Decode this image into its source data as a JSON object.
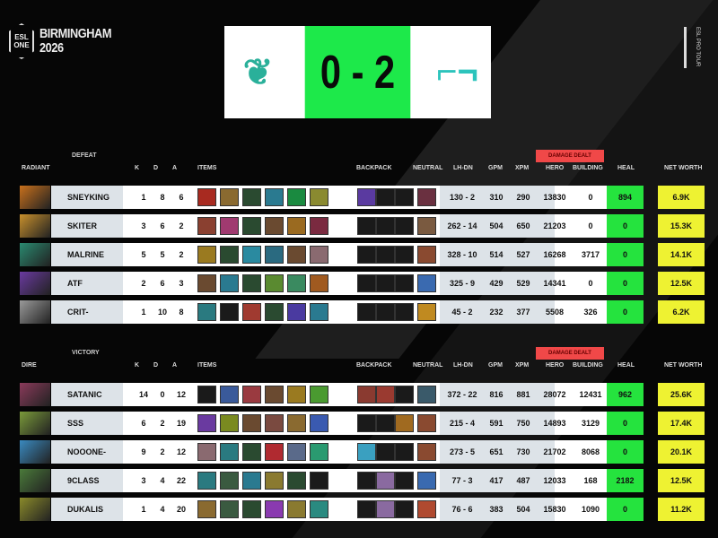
{
  "event": {
    "name": "BIRMINGHAM",
    "year": "2026",
    "brand": "ESL ONE",
    "tour": "ESL PRO TOUR"
  },
  "score": {
    "value": "0 - 2",
    "accent": "#1de94a",
    "team_left_color": "#2ab09a",
    "team_right_color": "#2cc4bc"
  },
  "columns": {
    "k": "K",
    "d": "D",
    "a": "A",
    "items": "ITEMS",
    "backpack": "BACKPACK",
    "neutral": "NEUTRAL",
    "lhdn": "LH-DN",
    "gpm": "GPM",
    "xpm": "XPM",
    "hero": "HERO",
    "building": "BUILDING",
    "heal": "HEAL",
    "networth": "NET WORTH",
    "damage": "DAMAGE DEALT"
  },
  "radiant": {
    "label": "RADIANT",
    "result": "DEFEAT",
    "players": [
      {
        "name": "SNEYKING",
        "k": "1",
        "d": "8",
        "a": "6",
        "lhdn": "130 - 2",
        "gpm": "310",
        "xpm": "290",
        "hero": "13830",
        "building": "0",
        "heal": "894",
        "nw": "6.9K",
        "hero_color": "#c8701c",
        "items": [
          "#a82a20",
          "#8a6a30",
          "#2a4a30",
          "#2a7a90",
          "#1a8a40",
          "#8a8a30"
        ],
        "backpack": [
          "#5a3aa0",
          "#1a1a1a",
          "#1a1a1a"
        ],
        "neutral": "#6a3040"
      },
      {
        "name": "SKITER",
        "k": "3",
        "d": "6",
        "a": "2",
        "lhdn": "262 - 14",
        "gpm": "504",
        "xpm": "650",
        "hero": "21203",
        "building": "0",
        "heal": "0",
        "nw": "15.3K",
        "hero_color": "#c8902c",
        "items": [
          "#8a4030",
          "#a03a70",
          "#2a4a30",
          "#6a4a30",
          "#9a6a20",
          "#7a2a40"
        ],
        "backpack": [
          "#1a1a1a",
          "#1a1a1a",
          "#1a1a1a"
        ],
        "neutral": "#7a5a40"
      },
      {
        "name": "MALRINE",
        "k": "5",
        "d": "5",
        "a": "2",
        "lhdn": "328 - 10",
        "gpm": "514",
        "xpm": "527",
        "hero": "16268",
        "building": "3717",
        "heal": "0",
        "nw": "14.1K",
        "hero_color": "#2a8a70",
        "items": [
          "#9a7a20",
          "#2a4a30",
          "#2a8aa0",
          "#2a6a80",
          "#6a4a30",
          "#8a6a70"
        ],
        "backpack": [
          "#1a1a1a",
          "#1a1a1a",
          "#1a1a1a"
        ],
        "neutral": "#8a4a30"
      },
      {
        "name": "ATF",
        "k": "2",
        "d": "6",
        "a": "3",
        "lhdn": "325 - 9",
        "gpm": "429",
        "xpm": "529",
        "hero": "14341",
        "building": "0",
        "heal": "0",
        "nw": "12.5K",
        "hero_color": "#6a3aa0",
        "items": [
          "#6a4a30",
          "#2a7a90",
          "#2a4a30",
          "#5a8a30",
          "#3a8a60",
          "#a05a20"
        ],
        "backpack": [
          "#1a1a1a",
          "#1a1a1a",
          "#1a1a1a"
        ],
        "neutral": "#3a6ab0"
      },
      {
        "name": "CRIT-",
        "k": "1",
        "d": "10",
        "a": "8",
        "lhdn": "45 - 2",
        "gpm": "232",
        "xpm": "377",
        "hero": "5508",
        "building": "326",
        "heal": "0",
        "nw": "6.2K",
        "hero_color": "#9a9a9a",
        "items": [
          "#2a7a80",
          "#1a1a1a",
          "#a03a30",
          "#2a4a30",
          "#4a3aa0",
          "#2a7a90"
        ],
        "backpack": [
          "#1a1a1a",
          "#1a1a1a",
          "#1a1a1a"
        ],
        "neutral": "#c08a20"
      }
    ]
  },
  "dire": {
    "label": "DIRE",
    "result": "VICTORY",
    "players": [
      {
        "name": "SATANIC",
        "k": "14",
        "d": "0",
        "a": "12",
        "lhdn": "372 - 22",
        "gpm": "816",
        "xpm": "881",
        "hero": "28072",
        "building": "12431",
        "heal": "962",
        "nw": "25.6K",
        "hero_color": "#8a3a5a",
        "items": [
          "#1a1a1a",
          "#3a5a9a",
          "#9a3a40",
          "#6a4a30",
          "#9a7a20",
          "#4a9a30"
        ],
        "backpack": [
          "#8a3a30",
          "#9a3a30",
          "#1a1a1a"
        ],
        "neutral": "#3a5a6a"
      },
      {
        "name": "SSS",
        "k": "6",
        "d": "2",
        "a": "19",
        "lhdn": "215 - 4",
        "gpm": "591",
        "xpm": "750",
        "hero": "14893",
        "building": "3129",
        "heal": "0",
        "nw": "17.4K",
        "hero_color": "#7a9a3a",
        "items": [
          "#6a3aa0",
          "#7a8a20",
          "#6a4a30",
          "#7a4a40",
          "#8a6a30",
          "#3a5ab0"
        ],
        "backpack": [
          "#1a1a1a",
          "#1a1a1a",
          "#a06a20"
        ],
        "neutral": "#8a4a30"
      },
      {
        "name": "NOOONE-",
        "k": "9",
        "d": "2",
        "a": "12",
        "lhdn": "273 - 5",
        "gpm": "651",
        "xpm": "730",
        "hero": "21702",
        "building": "8068",
        "heal": "0",
        "nw": "20.1K",
        "hero_color": "#3a8ac0",
        "items": [
          "#8a6a70",
          "#2a7a80",
          "#2a4a30",
          "#b02a30",
          "#5a6a8a",
          "#2a9a70"
        ],
        "backpack": [
          "#3aa0c0",
          "#1a1a1a",
          "#1a1a1a"
        ],
        "neutral": "#8a4a30"
      },
      {
        "name": "9CLASS",
        "k": "3",
        "d": "4",
        "a": "22",
        "lhdn": "77 - 3",
        "gpm": "417",
        "xpm": "487",
        "hero": "12033",
        "building": "168",
        "heal": "2182",
        "nw": "12.5K",
        "hero_color": "#4a7a3a",
        "items": [
          "#2a7a80",
          "#3a5a40",
          "#2a7a90",
          "#8a7a30",
          "#2a4a30",
          "#1a1a1a"
        ],
        "backpack": [
          "#1a1a1a",
          "#8a6aa0",
          "#1a1a1a"
        ],
        "neutral": "#3a6ab0"
      },
      {
        "name": "DUKALIS",
        "k": "1",
        "d": "4",
        "a": "20",
        "lhdn": "76 - 6",
        "gpm": "383",
        "xpm": "504",
        "hero": "15830",
        "building": "1090",
        "heal": "0",
        "nw": "11.2K",
        "hero_color": "#8a8a2a",
        "items": [
          "#8a6a30",
          "#3a5a40",
          "#2a4a30",
          "#8a3ab0",
          "#8a7a30",
          "#2a8a80"
        ],
        "backpack": [
          "#1a1a1a",
          "#8a6aa0",
          "#1a1a1a"
        ],
        "neutral": "#b04a30"
      }
    ]
  }
}
